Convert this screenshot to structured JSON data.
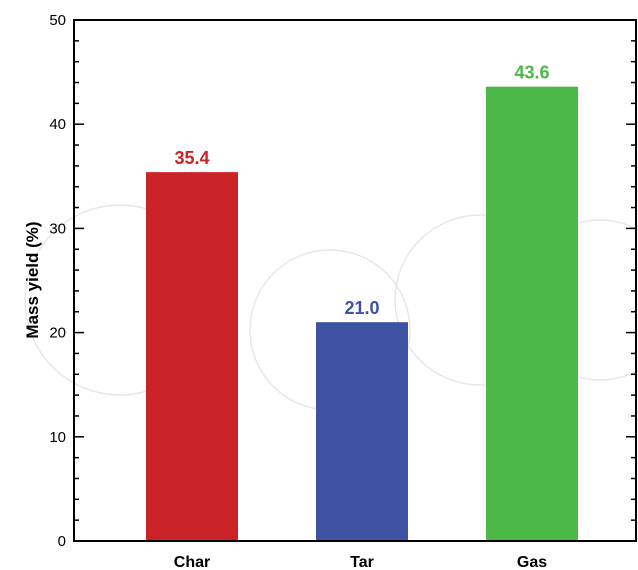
{
  "chart_data": {
    "type": "bar",
    "categories": [
      "Char",
      "Tar",
      "Gas"
    ],
    "values": [
      35.4,
      21.0,
      43.6
    ],
    "value_labels": [
      "35.4",
      "21.0",
      "43.6"
    ],
    "colors": [
      "#cb2428",
      "#3f51a3",
      "#4cb848"
    ],
    "title": "",
    "xlabel": "",
    "ylabel": "Mass yield (%)",
    "ylim": [
      0,
      50
    ],
    "yticks": [
      0,
      10,
      20,
      30,
      40,
      50
    ],
    "minor_ticks_per_major": 4,
    "grid": false,
    "legend": "none"
  }
}
